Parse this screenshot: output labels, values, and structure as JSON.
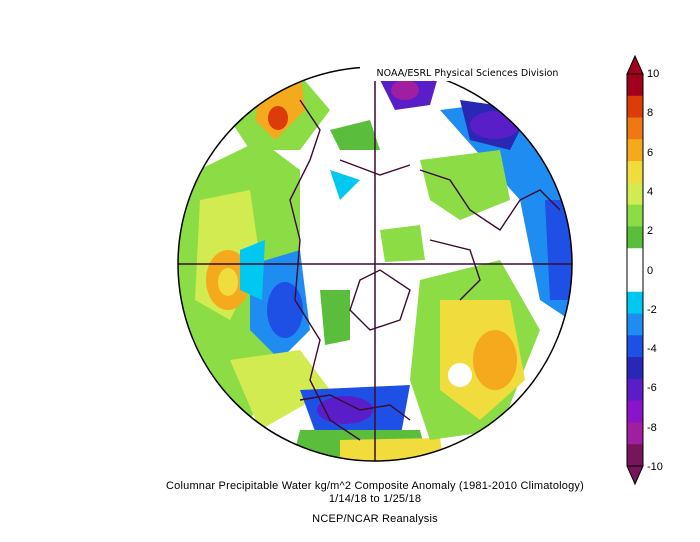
{
  "credit": "NOAA/ESRL Physical Sciences Division",
  "caption": {
    "line1": "Columnar Precipitable Water kg/m^2 Composite Anomaly (1981-2010 Climatology)",
    "line2": "1/14/18  to 1/25/18",
    "line3": "NCEP/NCAR Reanalysis"
  },
  "colorbar": {
    "ticks": [
      "10",
      "8",
      "6",
      "4",
      "2",
      "0",
      "-2",
      "-4",
      "-6",
      "-8",
      "-10"
    ],
    "colors": [
      "#a0001e",
      "#dc3c0a",
      "#f07814",
      "#f5aa1e",
      "#f0dc3c",
      "#d2eb50",
      "#8cdc46",
      "#5abe3c",
      "#ffffff",
      "#ffffff",
      "#00c8f0",
      "#1e8cf0",
      "#1e50e6",
      "#2828b4",
      "#5a1ec8",
      "#8c14c8",
      "#a01ea0",
      "#78145a"
    ]
  }
}
